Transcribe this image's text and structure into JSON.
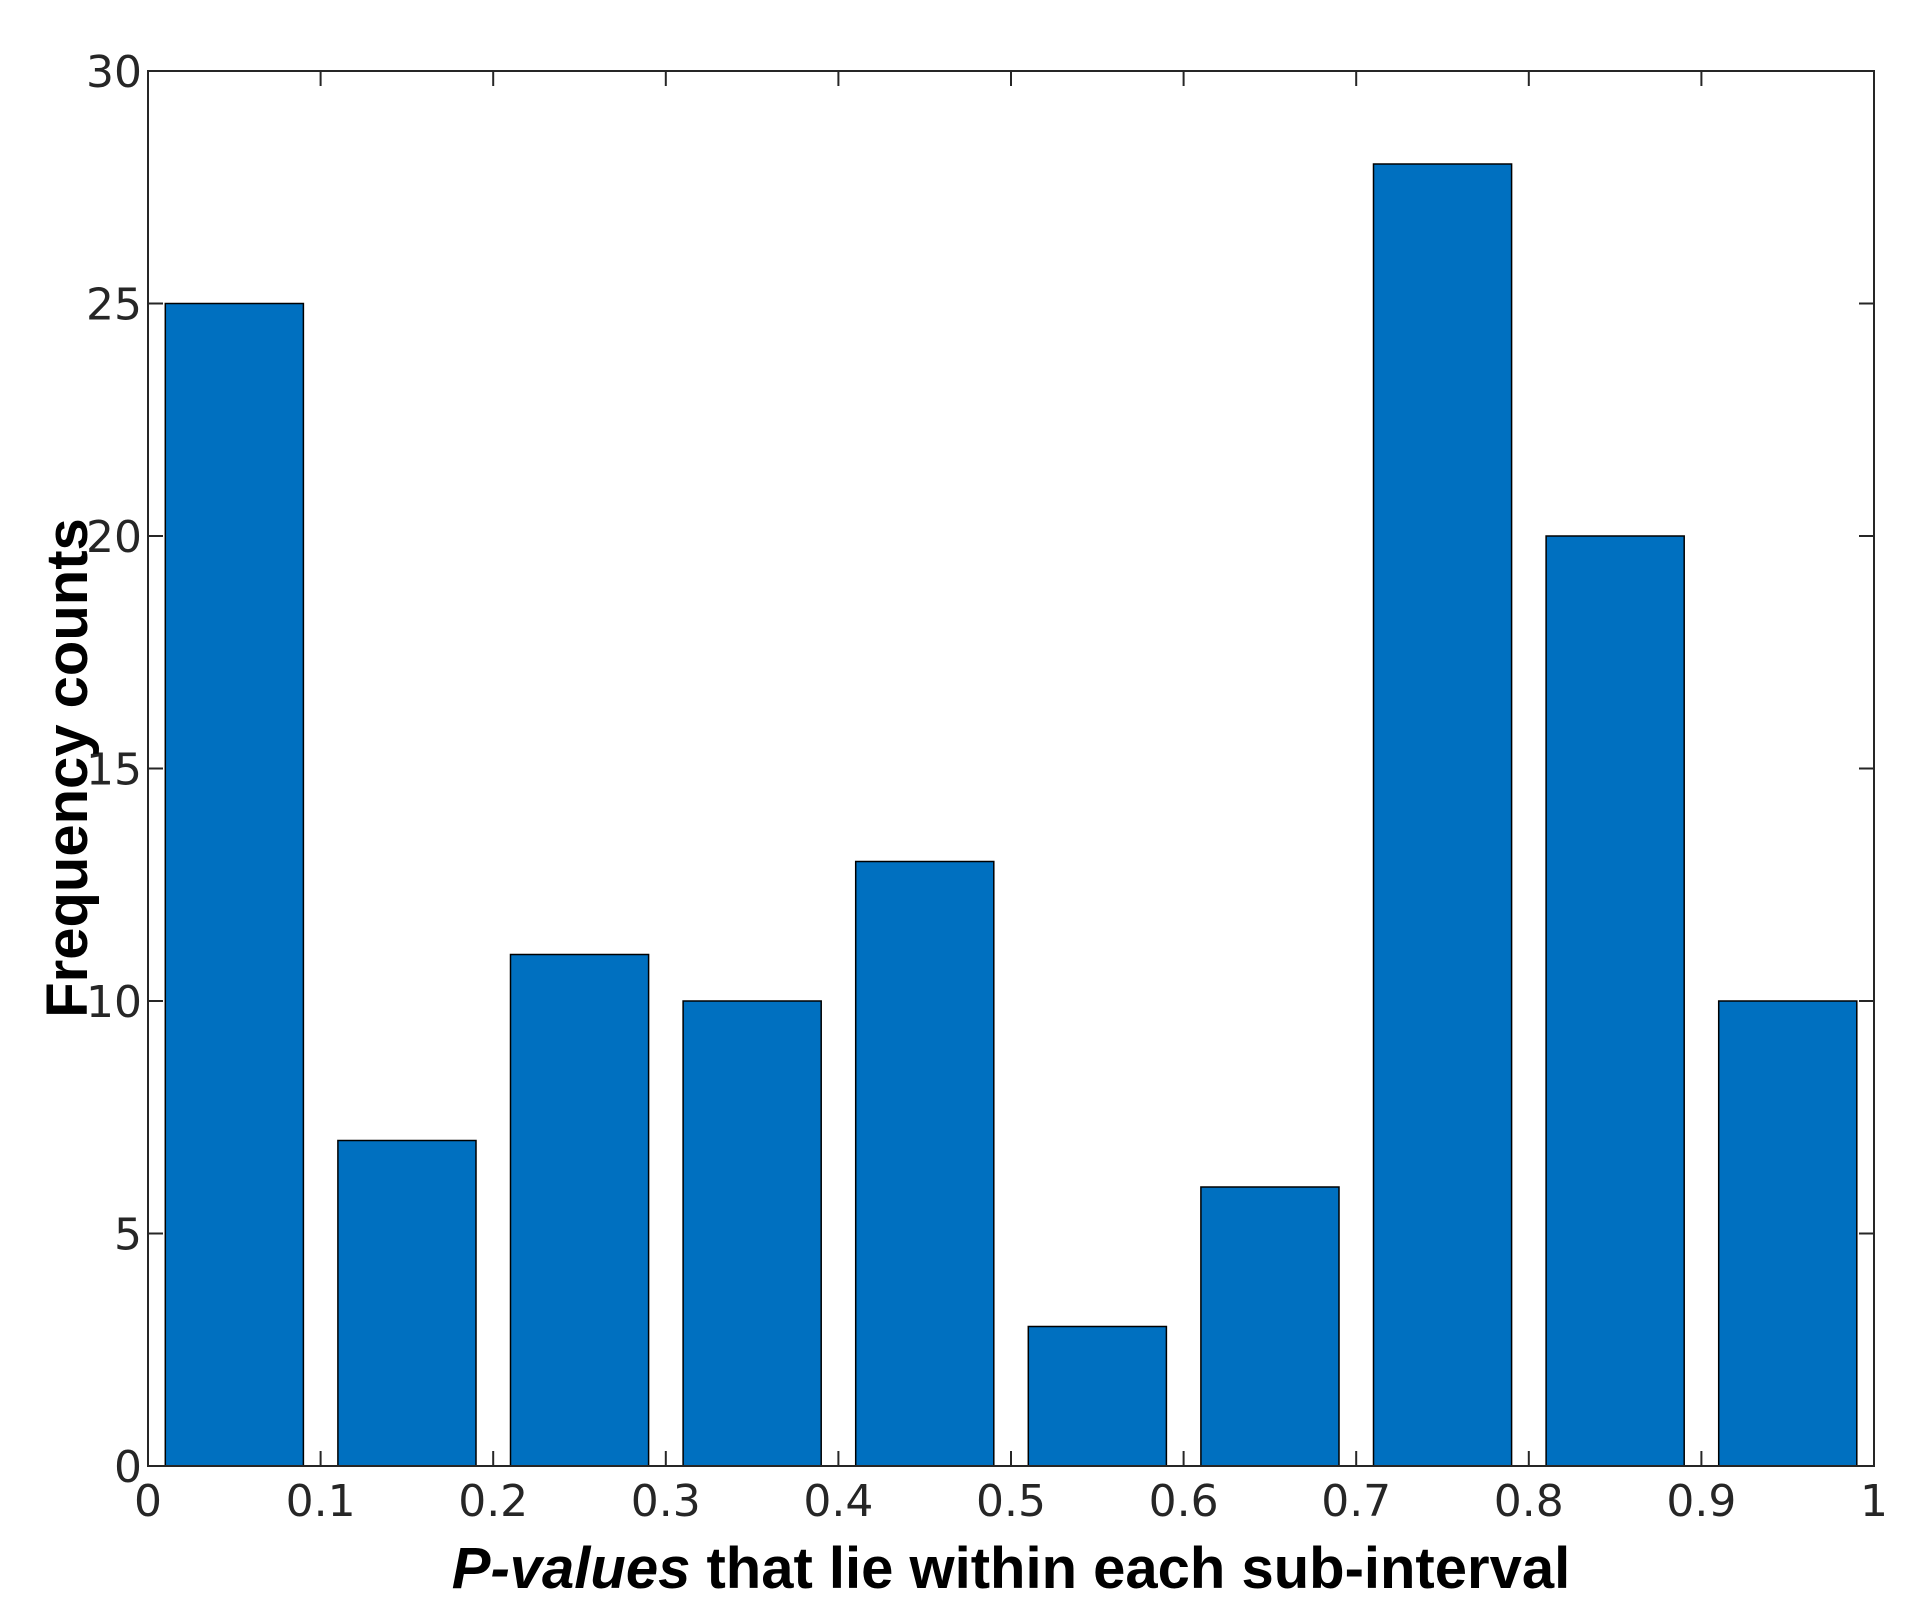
{
  "chart_data": {
    "type": "bar",
    "bin_edges": [
      0,
      0.1,
      0.2,
      0.3,
      0.4,
      0.5,
      0.6,
      0.7,
      0.8,
      0.9,
      1.0
    ],
    "values": [
      25,
      7,
      11,
      10,
      13,
      3,
      6,
      28,
      20,
      10
    ],
    "xlim": [
      0,
      1
    ],
    "ylim": [
      0,
      30
    ],
    "xticks": [
      0,
      0.1,
      0.2,
      0.3,
      0.4,
      0.5,
      0.6,
      0.7,
      0.8,
      0.9,
      1
    ],
    "xtick_labels": [
      "0",
      "0.1",
      "0.2",
      "0.3",
      "0.4",
      "0.5",
      "0.6",
      "0.7",
      "0.8",
      "0.9",
      "1"
    ],
    "yticks": [
      0,
      5,
      10,
      15,
      20,
      25,
      30
    ],
    "ytick_labels": [
      "0",
      "5",
      "10",
      "15",
      "20",
      "25",
      "30"
    ],
    "xlabel_italic": "P-values",
    "xlabel_rest": " that lie within each sub-interval",
    "ylabel": "Frequency counts",
    "grid": false,
    "bar_color": "#0070C0",
    "edge_color": "#000000"
  }
}
